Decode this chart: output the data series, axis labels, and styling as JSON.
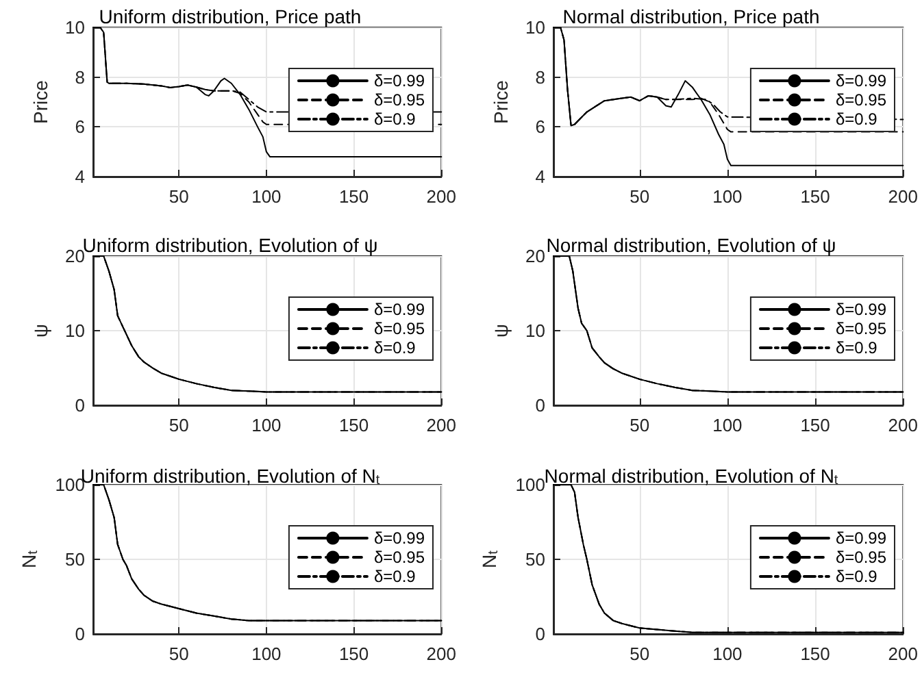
{
  "chart_data": [
    {
      "type": "line",
      "title": "Uniform distribution, Price path",
      "ylabel": "Price",
      "xlim": [
        1,
        200
      ],
      "xticks": [
        50,
        100,
        150,
        200
      ],
      "ylim": [
        4,
        10
      ],
      "yticks": [
        4,
        6,
        8,
        10
      ],
      "grid": true,
      "legend": "top right",
      "marker": "none",
      "series": [
        {
          "name": "δ=0.99",
          "color": "#000000",
          "line_style": "solid",
          "x": [
            1,
            5,
            7,
            9,
            10,
            20,
            30,
            40,
            45,
            50,
            55,
            60,
            65,
            67,
            70,
            74,
            76,
            80,
            85,
            90,
            95,
            98,
            100,
            102,
            200
          ],
          "values": [
            10,
            10,
            9.8,
            7.8,
            7.75,
            7.75,
            7.72,
            7.65,
            7.58,
            7.62,
            7.68,
            7.6,
            7.3,
            7.25,
            7.45,
            7.85,
            7.95,
            7.75,
            7.3,
            6.7,
            6.0,
            5.6,
            5.0,
            4.8,
            4.8
          ]
        },
        {
          "name": "δ=0.95",
          "color": "#000000",
          "line_style": "dashed",
          "x": [
            1,
            5,
            7,
            9,
            10,
            20,
            30,
            40,
            45,
            50,
            55,
            60,
            65,
            70,
            75,
            80,
            85,
            90,
            95,
            98,
            100,
            200
          ],
          "values": [
            10,
            10,
            9.8,
            7.8,
            7.75,
            7.75,
            7.72,
            7.65,
            7.58,
            7.62,
            7.68,
            7.6,
            7.5,
            7.45,
            7.45,
            7.45,
            7.35,
            7.0,
            6.5,
            6.2,
            6.1,
            6.1
          ]
        },
        {
          "name": "δ=0.9",
          "color": "#000000",
          "line_style": "dashdot",
          "x": [
            1,
            5,
            7,
            9,
            10,
            20,
            30,
            40,
            45,
            50,
            55,
            60,
            65,
            70,
            75,
            80,
            85,
            90,
            95,
            100,
            200
          ],
          "values": [
            10,
            10,
            9.8,
            7.8,
            7.75,
            7.75,
            7.72,
            7.65,
            7.58,
            7.62,
            7.68,
            7.6,
            7.5,
            7.45,
            7.45,
            7.45,
            7.4,
            7.1,
            6.8,
            6.6,
            6.6
          ]
        }
      ]
    },
    {
      "type": "line",
      "title": "Normal distribution, Price path",
      "ylabel": "Price",
      "xlim": [
        1,
        200
      ],
      "xticks": [
        50,
        100,
        150,
        200
      ],
      "ylim": [
        4,
        10
      ],
      "yticks": [
        4,
        6,
        8,
        10
      ],
      "grid": true,
      "legend": "top right",
      "marker": "none",
      "series": [
        {
          "name": "δ=0.99",
          "color": "#000000",
          "line_style": "solid",
          "x": [
            1,
            5,
            7,
            9,
            11,
            13,
            20,
            30,
            40,
            45,
            50,
            55,
            60,
            65,
            68,
            72,
            76,
            80,
            85,
            90,
            95,
            98,
            100,
            102,
            200
          ],
          "values": [
            10,
            10,
            9.5,
            7.5,
            6.05,
            6.1,
            6.6,
            7.05,
            7.15,
            7.2,
            7.05,
            7.25,
            7.2,
            6.85,
            6.8,
            7.3,
            7.85,
            7.6,
            7.1,
            6.5,
            5.7,
            5.3,
            4.7,
            4.45,
            4.45
          ]
        },
        {
          "name": "δ=0.95",
          "color": "#000000",
          "line_style": "dashed",
          "x": [
            1,
            5,
            7,
            9,
            11,
            13,
            20,
            30,
            40,
            45,
            50,
            55,
            60,
            65,
            70,
            80,
            85,
            90,
            95,
            100,
            102,
            200
          ],
          "values": [
            10,
            10,
            9.5,
            7.5,
            6.05,
            6.1,
            6.6,
            7.05,
            7.15,
            7.2,
            7.05,
            7.25,
            7.2,
            7.1,
            7.1,
            7.1,
            7.15,
            7.0,
            6.5,
            5.9,
            5.8,
            5.8
          ]
        },
        {
          "name": "δ=0.9",
          "color": "#000000",
          "line_style": "dashdot",
          "x": [
            1,
            5,
            7,
            9,
            11,
            13,
            20,
            30,
            40,
            45,
            50,
            55,
            60,
            65,
            70,
            80,
            88,
            92,
            96,
            100,
            200
          ],
          "values": [
            10,
            10,
            9.5,
            7.5,
            6.05,
            6.1,
            6.6,
            7.05,
            7.15,
            7.2,
            7.05,
            7.25,
            7.2,
            7.1,
            7.1,
            7.15,
            7.1,
            6.9,
            6.6,
            6.4,
            6.3
          ]
        }
      ]
    },
    {
      "type": "line",
      "title": "Uniform distribution, Evolution of ψ",
      "ylabel": "ψ",
      "xlim": [
        1,
        200
      ],
      "xticks": [
        50,
        100,
        150,
        200
      ],
      "ylim": [
        0,
        20
      ],
      "yticks": [
        0,
        10,
        20
      ],
      "grid": true,
      "legend": "top right",
      "marker": "none",
      "x": [
        1,
        7,
        10,
        13,
        15,
        18,
        20,
        23,
        27,
        30,
        35,
        40,
        50,
        60,
        70,
        80,
        90,
        100,
        200
      ],
      "series": [
        {
          "name": "δ=0.99",
          "color": "#000000",
          "line_style": "solid",
          "values": [
            20,
            20,
            18,
            15.5,
            12,
            10.5,
            9.5,
            8,
            6.5,
            5.8,
            5,
            4.3,
            3.5,
            2.9,
            2.4,
            2.0,
            1.9,
            1.8,
            1.8
          ]
        },
        {
          "name": "δ=0.95",
          "color": "#000000",
          "line_style": "dashed",
          "values": [
            20,
            20,
            18,
            15.5,
            12,
            10.5,
            9.5,
            8,
            6.5,
            5.8,
            5,
            4.3,
            3.5,
            2.9,
            2.4,
            2.0,
            1.9,
            1.8,
            1.8
          ]
        },
        {
          "name": "δ=0.9",
          "color": "#000000",
          "line_style": "dashdot",
          "values": [
            20,
            20,
            18,
            15.5,
            12,
            10.5,
            9.5,
            8,
            6.5,
            5.8,
            5,
            4.3,
            3.5,
            2.9,
            2.4,
            2.0,
            1.9,
            1.8,
            1.8
          ]
        }
      ]
    },
    {
      "type": "line",
      "title": "Normal distribution, Evolution of ψ",
      "ylabel": "ψ",
      "xlim": [
        1,
        200
      ],
      "xticks": [
        50,
        100,
        150,
        200
      ],
      "ylim": [
        0,
        20
      ],
      "yticks": [
        0,
        10,
        20
      ],
      "grid": true,
      "legend": "top right",
      "marker": "none",
      "x": [
        1,
        10,
        12,
        15,
        17,
        20,
        23,
        27,
        30,
        35,
        40,
        50,
        60,
        70,
        80,
        90,
        100,
        200
      ],
      "series": [
        {
          "name": "δ=0.99",
          "color": "#000000",
          "line_style": "solid",
          "values": [
            20,
            20,
            18,
            13,
            11,
            10,
            7.7,
            6.5,
            5.7,
            4.9,
            4.3,
            3.5,
            2.9,
            2.4,
            2.0,
            1.9,
            1.8,
            1.8
          ]
        },
        {
          "name": "δ=0.95",
          "color": "#000000",
          "line_style": "dashed",
          "values": [
            20,
            20,
            18,
            13,
            11,
            10,
            7.7,
            6.5,
            5.7,
            4.9,
            4.3,
            3.5,
            2.9,
            2.4,
            2.0,
            1.9,
            1.8,
            1.8
          ]
        },
        {
          "name": "δ=0.9",
          "color": "#000000",
          "line_style": "dashdot",
          "values": [
            20,
            20,
            18,
            13,
            11,
            10,
            7.7,
            6.5,
            5.7,
            4.9,
            4.3,
            3.5,
            2.9,
            2.4,
            2.0,
            1.9,
            1.8,
            1.8
          ]
        }
      ]
    },
    {
      "type": "line",
      "title": "Uniform distribution, Evolution of N$_{t}$",
      "ylabel": "N$_{t}$",
      "xlim": [
        1,
        200
      ],
      "xticks": [
        50,
        100,
        150,
        200
      ],
      "ylim": [
        0,
        100
      ],
      "yticks": [
        0,
        50,
        100
      ],
      "grid": true,
      "legend": "top right",
      "marker": "none",
      "x": [
        1,
        7,
        10,
        13,
        15,
        18,
        20,
        23,
        27,
        30,
        35,
        40,
        50,
        60,
        70,
        80,
        90,
        100,
        200
      ],
      "series": [
        {
          "name": "δ=0.99",
          "color": "#000000",
          "line_style": "solid",
          "values": [
            100,
            100,
            90,
            78,
            60,
            50,
            46,
            37,
            30,
            26,
            22,
            20,
            17,
            14,
            12,
            10,
            9,
            9,
            9
          ]
        },
        {
          "name": "δ=0.95",
          "color": "#000000",
          "line_style": "dashed",
          "values": [
            100,
            100,
            90,
            78,
            60,
            50,
            46,
            37,
            30,
            26,
            22,
            20,
            17,
            14,
            12,
            10,
            9,
            9,
            9
          ]
        },
        {
          "name": "δ=0.9",
          "color": "#000000",
          "line_style": "dashdot",
          "values": [
            100,
            100,
            90,
            78,
            60,
            50,
            46,
            37,
            30,
            26,
            22,
            20,
            17,
            14,
            12,
            10,
            9,
            9,
            9
          ]
        }
      ]
    },
    {
      "type": "line",
      "title": "Normal distribution, Evolution of N$_{t}$",
      "ylabel": "N$_{t}$",
      "xlim": [
        1,
        200
      ],
      "xticks": [
        50,
        100,
        150,
        200
      ],
      "ylim": [
        0,
        100
      ],
      "yticks": [
        0,
        50,
        100
      ],
      "grid": true,
      "legend": "top right",
      "marker": "none",
      "x": [
        1,
        11,
        13,
        15,
        18,
        20,
        23,
        27,
        30,
        35,
        40,
        50,
        60,
        70,
        80,
        100,
        200
      ],
      "series": [
        {
          "name": "δ=0.99",
          "color": "#000000",
          "line_style": "solid",
          "values": [
            100,
            100,
            95,
            78,
            60,
            50,
            33,
            20,
            14,
            9,
            7,
            4,
            3,
            2,
            1,
            1,
            1
          ]
        },
        {
          "name": "δ=0.95",
          "color": "#000000",
          "line_style": "dashed",
          "values": [
            100,
            100,
            95,
            78,
            60,
            50,
            33,
            20,
            14,
            9,
            7,
            4,
            3,
            2,
            1,
            1,
            1
          ]
        },
        {
          "name": "δ=0.9",
          "color": "#000000",
          "line_style": "dashdot",
          "values": [
            100,
            100,
            95,
            78,
            60,
            50,
            33,
            20,
            14,
            9,
            7,
            4,
            3,
            2,
            1,
            1,
            1
          ]
        }
      ]
    }
  ]
}
